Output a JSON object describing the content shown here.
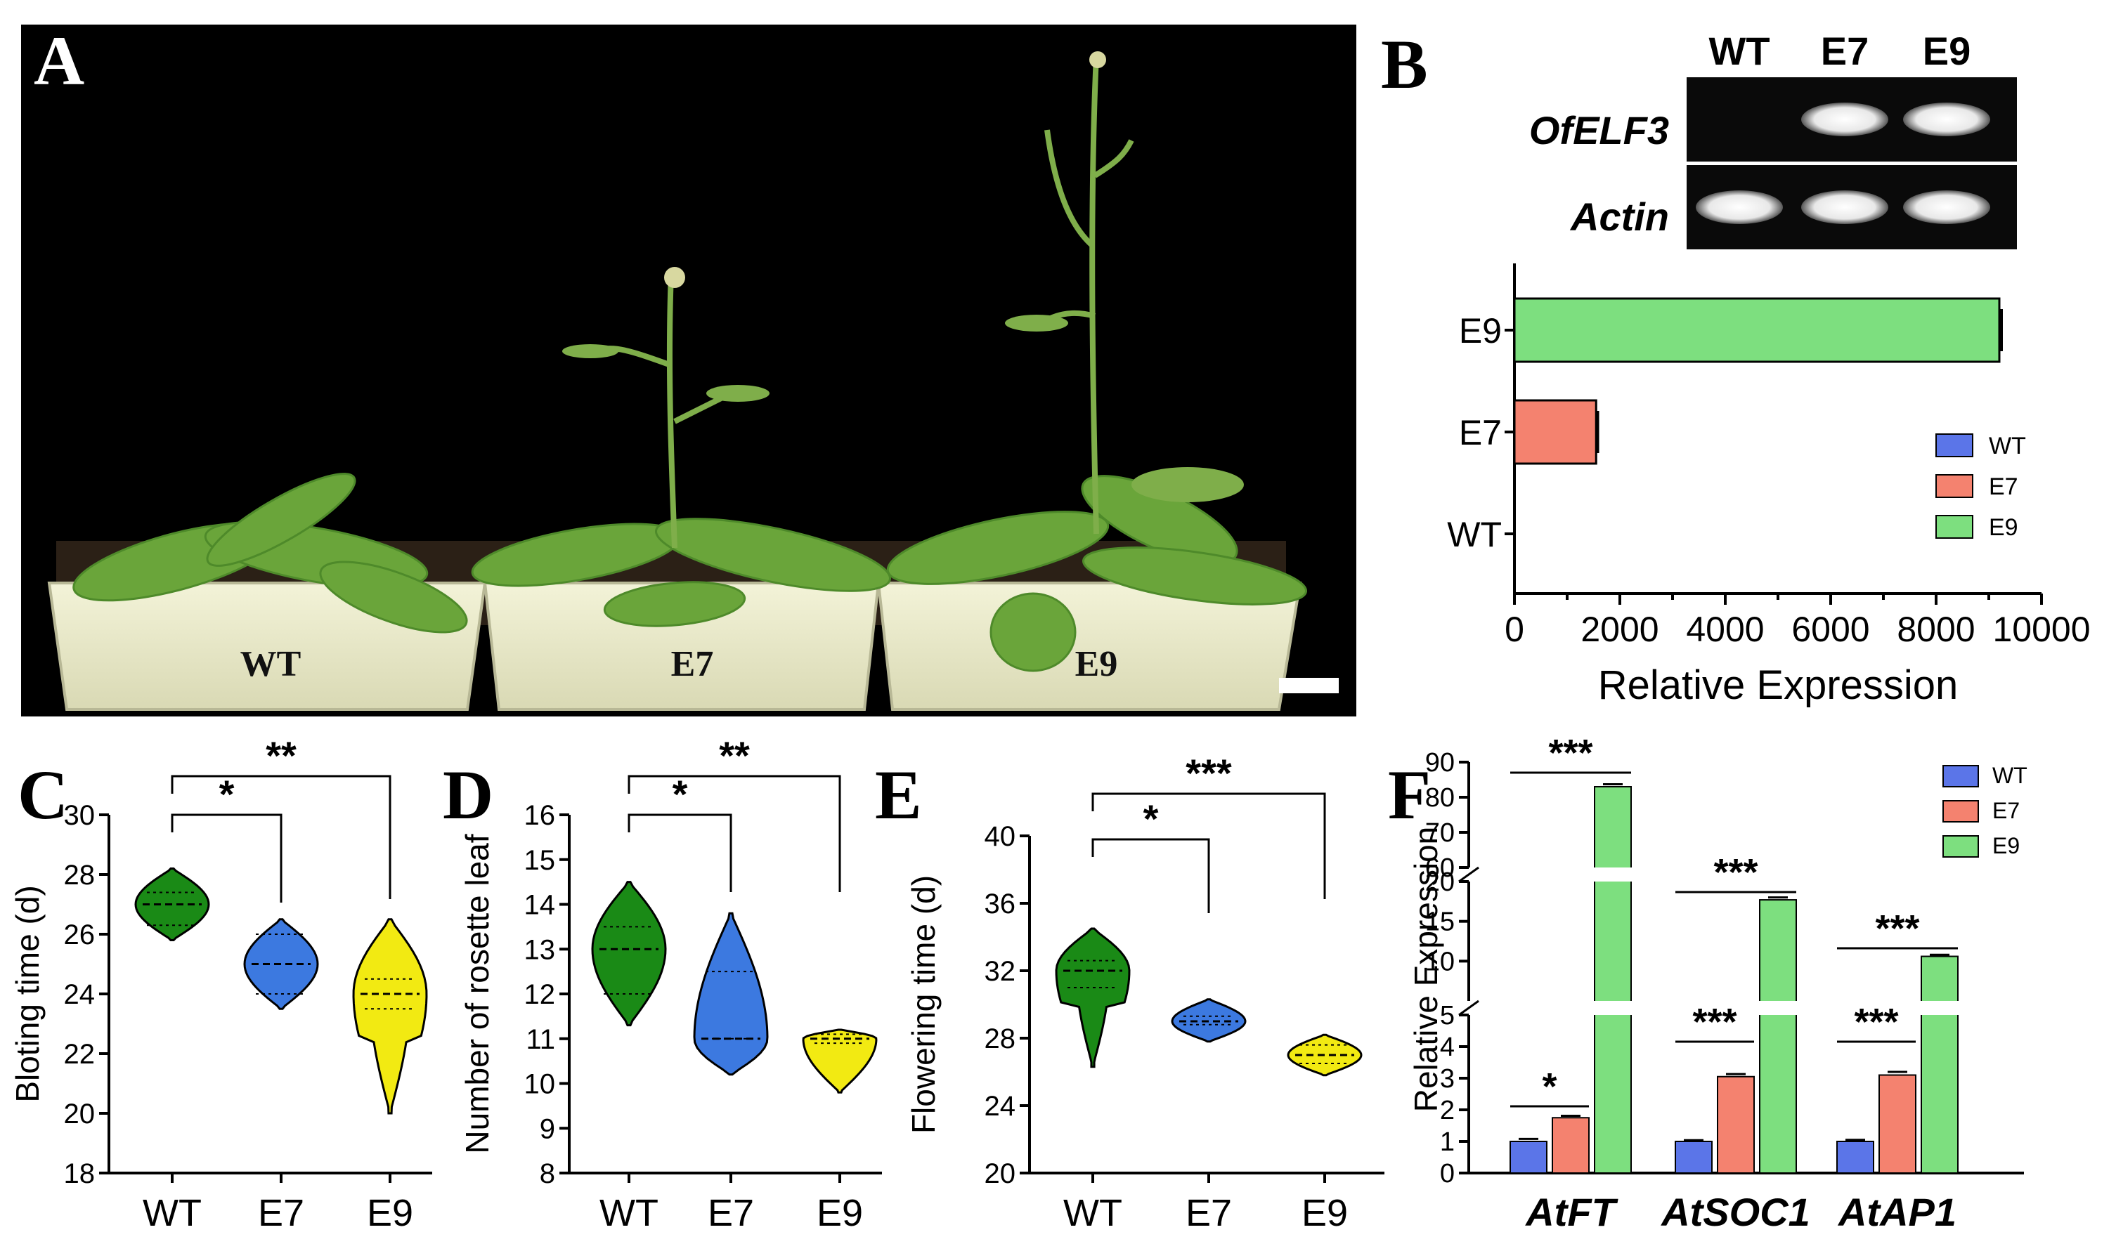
{
  "panels": {
    "A": {
      "letter": "A",
      "pot_labels": [
        "WT",
        "E7",
        "E9"
      ]
    },
    "B": {
      "letter": "B",
      "gel": {
        "lanes": [
          "WT",
          "E7",
          "E9"
        ],
        "rows": [
          "OfELF3",
          "Actin"
        ],
        "bands": {
          "OfELF3": [
            false,
            true,
            true
          ],
          "Actin": [
            true,
            true,
            true
          ]
        }
      }
    },
    "C": {
      "letter": "C"
    },
    "D": {
      "letter": "D"
    },
    "E": {
      "letter": "E"
    },
    "F": {
      "letter": "F"
    }
  },
  "colors": {
    "WT": "#5b75e8",
    "E7": "#f4826f",
    "E9": "#7ddf7f",
    "violin_WT": "#1a8a16",
    "violin_E7": "#3c79e0",
    "violin_E9": "#f2ea12"
  },
  "chart_data": [
    {
      "id": "B",
      "type": "bar",
      "orientation": "horizontal",
      "categories": [
        "WT",
        "E7",
        "E9"
      ],
      "values": [
        0,
        1550,
        9200
      ],
      "errors": [
        0,
        30,
        40
      ],
      "xlabel": "Relative Expression",
      "xlim": [
        0,
        10000
      ],
      "xticks": [
        "0",
        "2000",
        "4000",
        "6000",
        "8000",
        "10000"
      ],
      "legend": [
        "WT",
        "E7",
        "E9"
      ],
      "legend_position": "right"
    },
    {
      "id": "C",
      "type": "violin",
      "categories": [
        "WT",
        "E7",
        "E9"
      ],
      "ylabel": "Bloting time (d)",
      "ylim": [
        18,
        30
      ],
      "yticks": [
        "18",
        "20",
        "22",
        "24",
        "26",
        "28",
        "30"
      ],
      "medians": [
        27,
        25,
        24
      ],
      "quartiles": [
        [
          26.3,
          27.4
        ],
        [
          24,
          26
        ],
        [
          23.5,
          24.5
        ]
      ],
      "ranges": [
        [
          25.8,
          28.2
        ],
        [
          23.5,
          26.5
        ],
        [
          20,
          26.5
        ]
      ],
      "significance": [
        {
          "from": "WT",
          "to": "E7",
          "label": "*"
        },
        {
          "from": "WT",
          "to": "E9",
          "label": "**"
        }
      ]
    },
    {
      "id": "D",
      "type": "violin",
      "categories": [
        "WT",
        "E7",
        "E9"
      ],
      "ylabel": "Number of rosette leaf",
      "ylim": [
        8,
        16
      ],
      "yticks": [
        "8",
        "9",
        "10",
        "11",
        "12",
        "13",
        "14",
        "15",
        "16"
      ],
      "medians": [
        13,
        11,
        11
      ],
      "quartiles": [
        [
          12,
          13.5
        ],
        [
          11,
          12.5
        ],
        [
          10.9,
          11.1
        ]
      ],
      "ranges": [
        [
          11.3,
          14.5
        ],
        [
          10.2,
          13.8
        ],
        [
          9.8,
          11.2
        ]
      ],
      "significance": [
        {
          "from": "WT",
          "to": "E7",
          "label": "*"
        },
        {
          "from": "WT",
          "to": "E9",
          "label": "**"
        }
      ]
    },
    {
      "id": "E",
      "type": "violin",
      "categories": [
        "WT",
        "E7",
        "E9"
      ],
      "ylabel": "Flowering time (d)",
      "ylim": [
        20,
        40
      ],
      "yticks": [
        "20",
        "24",
        "28",
        "32",
        "36",
        "40"
      ],
      "medians": [
        32,
        29,
        27
      ],
      "quartiles": [
        [
          31,
          32.6
        ],
        [
          28.8,
          29.3
        ],
        [
          26.5,
          27.6
        ]
      ],
      "ranges": [
        [
          26.3,
          34.5
        ],
        [
          27.8,
          30.3
        ],
        [
          25.8,
          28.2
        ]
      ],
      "significance": [
        {
          "from": "WT",
          "to": "E7",
          "label": "*"
        },
        {
          "from": "WT",
          "to": "E9",
          "label": "***"
        }
      ]
    },
    {
      "id": "F",
      "type": "bar",
      "orientation": "vertical",
      "categories": [
        "AtFT",
        "AtSOC1",
        "AtAP1"
      ],
      "series": [
        {
          "name": "WT",
          "values": [
            1,
            1,
            1
          ],
          "errors": [
            0.08,
            0.04,
            0.05
          ]
        },
        {
          "name": "E7",
          "values": [
            1.75,
            3.05,
            3.1
          ],
          "errors": [
            0.06,
            0.08,
            0.1
          ]
        },
        {
          "name": "E9",
          "values": [
            83,
            17.7,
            10.6
          ],
          "errors": [
            0.7,
            0.3,
            0.2
          ]
        }
      ],
      "ylabel": "Relative Expression",
      "y_segments": [
        {
          "range": [
            0,
            5
          ],
          "ticks": [
            "0",
            "1",
            "2",
            "3",
            "4",
            "5"
          ]
        },
        {
          "range": [
            5,
            20
          ],
          "ticks": [
            "10",
            "15",
            "20"
          ]
        },
        {
          "range": [
            60,
            90
          ],
          "ticks": [
            "60",
            "70",
            "80",
            "90"
          ]
        }
      ],
      "legend": [
        "WT",
        "E7",
        "E9"
      ],
      "legend_position": "top-right",
      "significance": [
        {
          "category": "AtFT",
          "from": "WT",
          "to": "E7",
          "label": "*"
        },
        {
          "category": "AtFT",
          "from": "WT",
          "to": "E9",
          "label": "***"
        },
        {
          "category": "AtSOC1",
          "from": "WT",
          "to": "E7",
          "label": "***"
        },
        {
          "category": "AtSOC1",
          "from": "WT",
          "to": "E9",
          "label": "***"
        },
        {
          "category": "AtAP1",
          "from": "WT",
          "to": "E7",
          "label": "***"
        },
        {
          "category": "AtAP1",
          "from": "WT",
          "to": "E9",
          "label": "***"
        }
      ]
    }
  ]
}
